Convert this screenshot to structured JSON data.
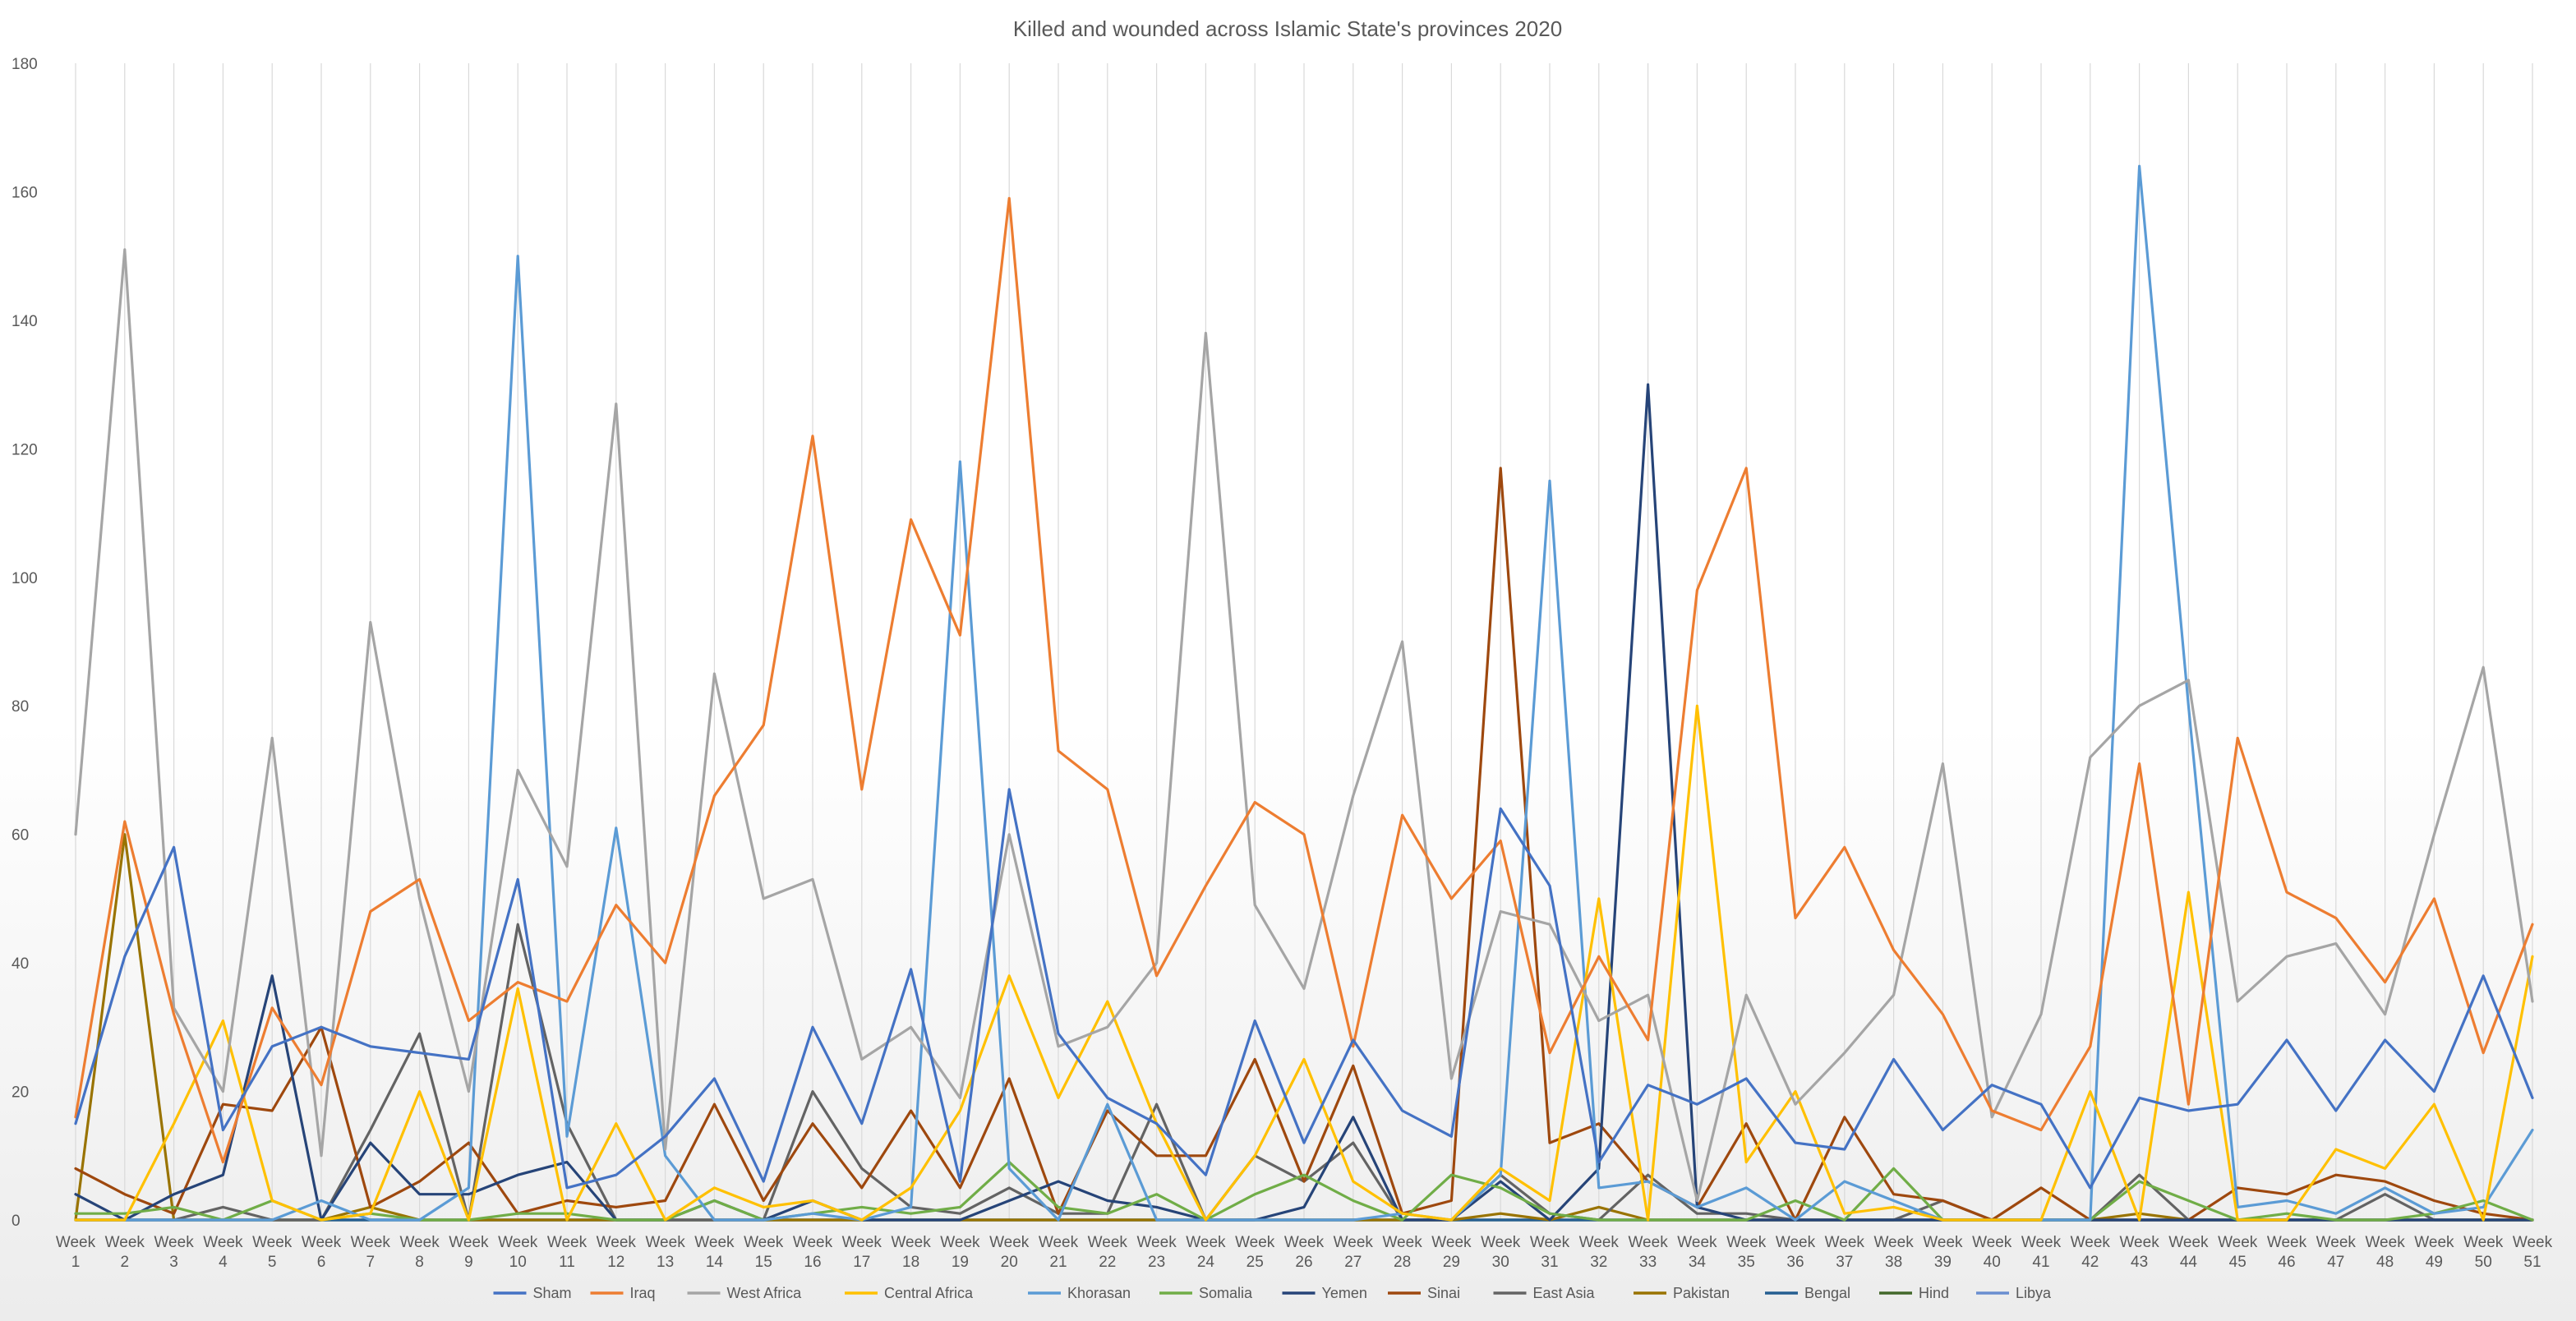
{
  "chart_data": {
    "type": "line",
    "title": "Killed and wounded across Islamic State's provinces 2020",
    "xlabel": "",
    "ylabel": "",
    "ylim": [
      0,
      180
    ],
    "yticks": [
      0,
      20,
      40,
      60,
      80,
      100,
      120,
      140,
      160,
      180
    ],
    "grid": "vertical",
    "legend": "bottom",
    "categories": [
      "Week 1",
      "Week 2",
      "Week 3",
      "Week 4",
      "Week 5",
      "Week 6",
      "Week 7",
      "Week 8",
      "Week 9",
      "Week 10",
      "Week 11",
      "Week 12",
      "Week 13",
      "Week 14",
      "Week 15",
      "Week 16",
      "Week 17",
      "Week 18",
      "Week 19",
      "Week 20",
      "Week 21",
      "Week 22",
      "Week 23",
      "Week 24",
      "Week 25",
      "Week 26",
      "Week 27",
      "Week 28",
      "Week 29",
      "Week 30",
      "Week 31",
      "Week 32",
      "Week 33",
      "Week 34",
      "Week 35",
      "Week 36",
      "Week 37",
      "Week 38",
      "Week 39",
      "Week 40",
      "Week 41",
      "Week 42",
      "Week 43",
      "Week 44",
      "Week 45",
      "Week 46",
      "Week 47",
      "Week 48",
      "Week 49",
      "Week 50",
      "Week 51"
    ],
    "series": [
      {
        "name": "Sham",
        "color": "#4472C4",
        "values": [
          15,
          41,
          58,
          14,
          27,
          30,
          27,
          26,
          25,
          53,
          5,
          7,
          13,
          22,
          6,
          30,
          15,
          39,
          6,
          67,
          29,
          19,
          15,
          7,
          31,
          12,
          28,
          17,
          13,
          64,
          52,
          9,
          21,
          18,
          22,
          12,
          11,
          25,
          14,
          21,
          18,
          5,
          19,
          17,
          18,
          28,
          17,
          28,
          20,
          38,
          19
        ]
      },
      {
        "name": "Iraq",
        "color": "#ED7D31",
        "values": [
          16,
          62,
          32,
          9,
          33,
          21,
          48,
          53,
          31,
          37,
          34,
          49,
          40,
          66,
          77,
          122,
          67,
          109,
          91,
          159,
          73,
          67,
          38,
          52,
          65,
          60,
          27,
          63,
          50,
          59,
          26,
          41,
          28,
          98,
          117,
          47,
          58,
          42,
          32,
          17,
          14,
          27,
          71,
          18,
          75,
          51,
          47,
          37,
          50,
          26,
          46
        ]
      },
      {
        "name": "West Africa",
        "color": "#A5A5A5",
        "values": [
          60,
          151,
          33,
          20,
          75,
          10,
          93,
          50,
          20,
          70,
          55,
          127,
          11,
          85,
          50,
          53,
          25,
          30,
          19,
          60,
          27,
          30,
          40,
          138,
          49,
          36,
          66,
          90,
          22,
          48,
          46,
          31,
          35,
          3,
          35,
          18,
          26,
          35,
          71,
          16,
          32,
          72,
          80,
          84,
          34,
          41,
          43,
          32,
          60,
          86,
          34
        ]
      },
      {
        "name": "Central Africa",
        "color": "#FFC000",
        "values": [
          0,
          0,
          15,
          31,
          3,
          0,
          1,
          20,
          0,
          36,
          0,
          15,
          0,
          5,
          2,
          3,
          0,
          5,
          17,
          38,
          19,
          34,
          15,
          0,
          10,
          25,
          6,
          1,
          0,
          8,
          3,
          50,
          0,
          80,
          9,
          20,
          1,
          2,
          0,
          0,
          0,
          20,
          0,
          51,
          0,
          0,
          11,
          8,
          18,
          0,
          41
        ]
      },
      {
        "name": "Khorasan",
        "color": "#5B9BD5",
        "values": [
          0,
          0,
          0,
          0,
          0,
          3,
          0,
          0,
          5,
          150,
          13,
          61,
          10,
          0,
          0,
          1,
          0,
          2,
          118,
          8,
          0,
          18,
          0,
          0,
          0,
          0,
          0,
          1,
          0,
          7,
          115,
          5,
          6,
          2,
          5,
          0,
          6,
          3,
          0,
          0,
          0,
          0,
          164,
          80,
          2,
          3,
          1,
          5,
          1,
          2,
          14
        ]
      },
      {
        "name": "Somalia",
        "color": "#70AD47",
        "values": [
          1,
          1,
          2,
          0,
          3,
          0,
          1,
          0,
          0,
          1,
          1,
          0,
          0,
          3,
          0,
          1,
          2,
          1,
          2,
          9,
          2,
          1,
          4,
          0,
          4,
          7,
          3,
          0,
          7,
          5,
          1,
          0,
          0,
          0,
          0,
          3,
          0,
          8,
          0,
          0,
          0,
          0,
          6,
          3,
          0,
          1,
          0,
          0,
          1,
          3,
          0
        ]
      },
      {
        "name": "Yemen",
        "color": "#264478",
        "values": [
          4,
          0,
          4,
          7,
          38,
          0,
          12,
          4,
          4,
          7,
          9,
          0,
          0,
          3,
          0,
          3,
          0,
          0,
          0,
          3,
          6,
          3,
          2,
          0,
          0,
          2,
          16,
          0,
          0,
          6,
          0,
          8,
          130,
          2,
          0,
          0,
          0,
          0,
          0,
          0,
          0,
          0,
          0,
          0,
          0,
          0,
          0,
          0,
          0,
          0,
          0
        ]
      },
      {
        "name": "Sinai",
        "color": "#9E480E",
        "values": [
          8,
          4,
          1,
          18,
          17,
          30,
          2,
          6,
          12,
          1,
          3,
          2,
          3,
          18,
          3,
          15,
          5,
          17,
          5,
          22,
          1,
          17,
          10,
          10,
          25,
          6,
          24,
          1,
          3,
          117,
          12,
          15,
          6,
          2,
          15,
          0,
          16,
          4,
          3,
          0,
          5,
          0,
          0,
          0,
          5,
          4,
          7,
          6,
          3,
          1,
          0
        ]
      },
      {
        "name": "East Asia",
        "color": "#636363",
        "values": [
          0,
          0,
          0,
          2,
          0,
          0,
          14,
          29,
          0,
          46,
          15,
          0,
          0,
          0,
          0,
          20,
          8,
          2,
          1,
          5,
          1,
          1,
          18,
          0,
          10,
          6,
          12,
          0,
          0,
          7,
          1,
          0,
          7,
          1,
          1,
          0,
          0,
          0,
          3,
          0,
          0,
          0,
          7,
          0,
          0,
          0,
          0,
          4,
          0,
          0,
          0
        ]
      },
      {
        "name": "Pakistan",
        "color": "#997300",
        "values": [
          0,
          60,
          0,
          0,
          0,
          0,
          2,
          0,
          0,
          0,
          0,
          0,
          0,
          0,
          0,
          0,
          0,
          0,
          0,
          0,
          0,
          0,
          0,
          0,
          0,
          0,
          0,
          0,
          0,
          1,
          0,
          2,
          0,
          0,
          0,
          0,
          0,
          0,
          0,
          0,
          0,
          0,
          1,
          0,
          0,
          0,
          0,
          0,
          0,
          0,
          0
        ]
      },
      {
        "name": "Bengal",
        "color": "#255E91",
        "values": [
          0,
          0,
          0,
          0,
          0,
          0,
          0,
          0,
          0,
          0,
          0,
          0,
          0,
          0,
          0,
          0,
          0,
          0,
          0,
          0,
          0,
          0,
          0,
          0,
          0,
          0,
          0,
          0,
          0,
          0,
          0,
          0,
          0,
          0,
          0,
          0,
          0,
          0,
          0,
          0,
          0,
          0,
          0,
          0,
          0,
          0,
          0,
          0,
          0,
          0,
          0
        ]
      },
      {
        "name": "Hind",
        "color": "#43682B",
        "values": [
          0,
          0,
          0,
          0,
          0,
          0,
          0,
          0,
          0,
          0,
          0,
          0,
          0,
          0,
          0,
          0,
          0,
          0,
          0,
          0,
          0,
          0,
          0,
          0,
          0,
          0,
          0,
          0,
          0,
          0,
          0,
          0,
          0,
          0,
          0,
          0,
          0,
          0,
          0,
          0,
          0,
          0,
          0,
          0,
          0,
          0,
          0,
          0,
          0,
          0,
          0
        ]
      },
      {
        "name": "Libya",
        "color": "#698ED0",
        "values": [
          0,
          0,
          0,
          0,
          0,
          0,
          0,
          0,
          0,
          0,
          0,
          0,
          0,
          0,
          0,
          0,
          0,
          0,
          0,
          0,
          0,
          0,
          0,
          0,
          0,
          0,
          0,
          0,
          0,
          0,
          0,
          0,
          0,
          0,
          0,
          0,
          0,
          0,
          0,
          0,
          0,
          0,
          0,
          0,
          0,
          0,
          0,
          0,
          0,
          0,
          0
        ]
      }
    ]
  }
}
